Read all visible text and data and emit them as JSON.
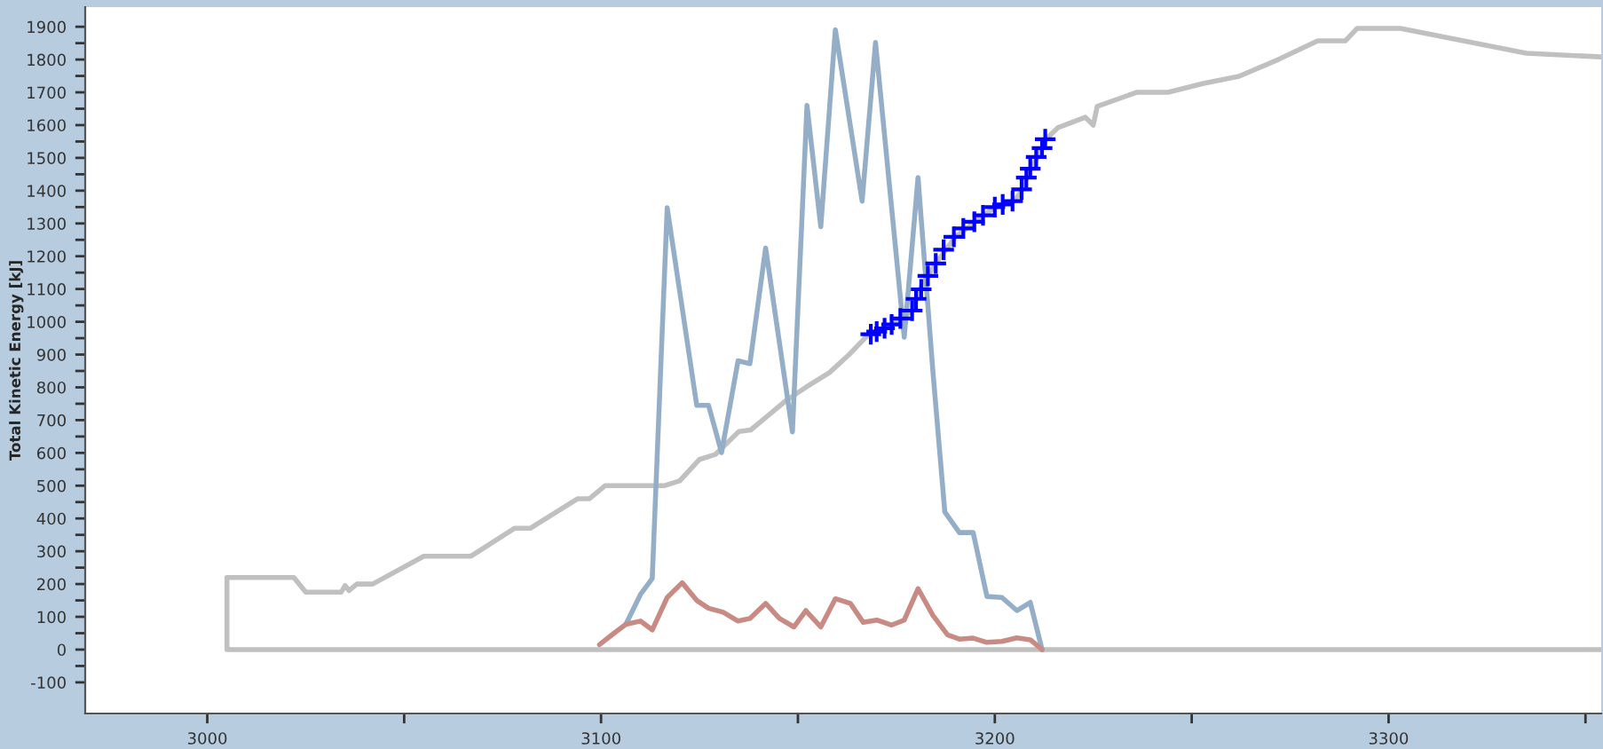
{
  "chart_data": {
    "type": "line",
    "ylabel": "Total Kinetic Energy [kJ]",
    "xlim": [
      2969,
      3354
    ],
    "ylim": [
      -195,
      1960
    ],
    "xticks": [
      3000,
      {
        "value": 3050,
        "label": null
      },
      3100,
      {
        "value": 3150,
        "label": null
      },
      3200,
      {
        "value": 3250,
        "label": null
      },
      3300,
      {
        "value": 3350,
        "label": null
      }
    ],
    "yticks": [
      -100,
      {
        "value": -50,
        "label": null
      },
      0,
      {
        "value": 50,
        "label": null
      },
      100,
      {
        "value": 150,
        "label": null
      },
      200,
      {
        "value": 250,
        "label": null
      },
      300,
      {
        "value": 350,
        "label": null
      },
      400,
      {
        "value": 450,
        "label": null
      },
      500,
      {
        "value": 550,
        "label": null
      },
      600,
      {
        "value": 650,
        "label": null
      },
      700,
      {
        "value": 750,
        "label": null
      },
      800,
      {
        "value": 850,
        "label": null
      },
      900,
      {
        "value": 950,
        "label": null
      },
      1000,
      {
        "value": 1050,
        "label": null
      },
      1100,
      {
        "value": 1150,
        "label": null
      },
      1200,
      {
        "value": 1250,
        "label": null
      },
      1300,
      {
        "value": 1350,
        "label": null
      },
      1400,
      {
        "value": 1450,
        "label": null
      },
      1500,
      {
        "value": 1550,
        "label": null
      },
      1600,
      {
        "value": 1650,
        "label": null
      },
      1700,
      {
        "value": 1750,
        "label": null
      },
      1800,
      {
        "value": 1850,
        "label": null
      },
      1900
    ],
    "grid": false,
    "series": [
      {
        "color": "#c0c0c0",
        "x": [
          3354,
          3005,
          3005,
          3022,
          3025,
          3034,
          3035,
          3036,
          3038,
          3042,
          3055,
          3067,
          3078,
          3082,
          3094,
          3097,
          3101,
          3116,
          3120,
          3125,
          3129,
          3135,
          3138,
          3143,
          3147,
          3152,
          3158,
          3163,
          3168,
          3174,
          3179,
          3181,
          3185,
          3190,
          3195,
          3200,
          3205,
          3207,
          3209,
          3211,
          3213,
          3216,
          3223,
          3225,
          3226,
          3236,
          3244,
          3253,
          3262,
          3272,
          3282,
          3289,
          3292,
          3303,
          3335,
          3354
        ],
        "values": [
          0,
          0,
          220,
          220,
          175,
          175,
          195,
          180,
          200,
          200,
          285,
          285,
          370,
          370,
          460,
          460,
          500,
          500,
          515,
          580,
          595,
          665,
          670,
          720,
          760,
          800,
          845,
          900,
          962,
          992,
          1034,
          1099,
          1178,
          1259,
          1305,
          1350,
          1368,
          1404,
          1467,
          1503,
          1557,
          1592,
          1624,
          1600,
          1657,
          1700,
          1700,
          1727,
          1749,
          1800,
          1857,
          1857,
          1895,
          1895,
          1819,
          1808
        ]
      },
      {
        "color": "#94aec8",
        "x": [
          3106.3,
          3110,
          3113,
          3116.8,
          3124.3,
          3127.3,
          3130.6,
          3134.8,
          3137.8,
          3141.8,
          3148.6,
          3152.3,
          3155.8,
          3159.5,
          3166.3,
          3169.7,
          3177,
          3180.5,
          3184.3,
          3187.3,
          3191,
          3194.5,
          3198,
          3201.8,
          3205.6,
          3209,
          3212
        ],
        "values": [
          77,
          168,
          217,
          1348,
          745,
          745,
          601,
          881,
          872,
          1225,
          664,
          1660,
          1290,
          1891,
          1368,
          1852,
          953,
          1440,
          845,
          420,
          357,
          357,
          162,
          159,
          119,
          144,
          0
        ]
      },
      {
        "color": "#c98a84",
        "x": [
          3099.6,
          3103.3,
          3106.3,
          3110,
          3113,
          3116.8,
          3120.6,
          3124.3,
          3127.3,
          3131,
          3134.8,
          3137.8,
          3141.8,
          3145.3,
          3149,
          3152,
          3155.8,
          3159.5,
          3163.3,
          3166.6,
          3170,
          3173.8,
          3177,
          3180.5,
          3184.3,
          3188,
          3191,
          3194.5,
          3198,
          3201.8,
          3205.6,
          3209,
          3212
        ],
        "values": [
          15,
          50,
          77,
          87,
          60,
          159,
          204,
          150,
          126,
          114,
          87,
          95,
          141,
          95,
          69,
          119,
          69,
          155,
          141,
          83,
          90,
          75,
          90,
          186,
          104,
          45,
          32,
          35,
          22,
          25,
          36,
          30,
          0
        ]
      },
      {
        "type": "scatter",
        "color": "#0000ff",
        "marker": "cross",
        "x": [
          3168.5,
          3170,
          3172,
          3173.8,
          3176,
          3179,
          3180,
          3181.3,
          3183,
          3185,
          3187,
          3189.6,
          3192,
          3194.8,
          3197,
          3200,
          3202,
          3204.5,
          3206.8,
          3208,
          3209,
          3210.5,
          3212,
          3212.8
        ],
        "values": [
          962,
          970,
          980,
          992,
          1010,
          1034,
          1070,
          1099,
          1140,
          1178,
          1220,
          1259,
          1285,
          1305,
          1325,
          1350,
          1358,
          1368,
          1404,
          1440,
          1467,
          1503,
          1530,
          1557
        ]
      }
    ]
  }
}
